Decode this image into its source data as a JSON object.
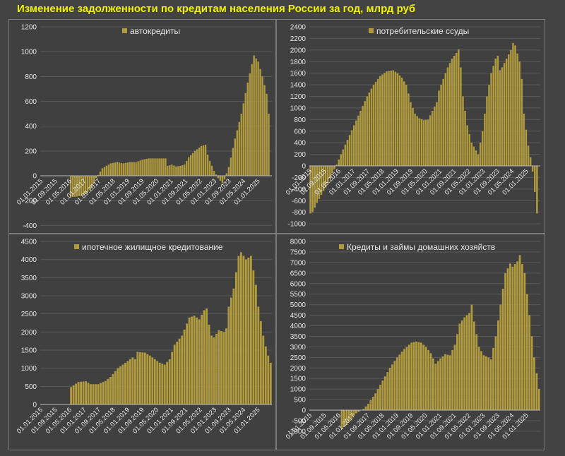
{
  "title": "Изменение задолженности по кредитам населения России за год, млрд руб",
  "colors": {
    "bar": "#b09a3e",
    "title": "#f2f200",
    "text": "#e6e6e6",
    "background": "#404040"
  },
  "chart_data": [
    {
      "type": "bar",
      "legend": "автокредиты",
      "ylim": [
        -400,
        1200
      ],
      "yticks": [
        -400,
        -200,
        0,
        200,
        400,
        600,
        800,
        1000,
        1200
      ],
      "x_tick_labels": [
        "01.01.2015",
        "01.09.2015",
        "01.05.2016",
        "01.01.2017",
        "01.09.2017",
        "01.05.2018",
        "01.01.2019",
        "01.09.2019",
        "01.05.2020",
        "01.01.2021",
        "01.09.2021",
        "01.05.2022",
        "01.01.2023",
        "01.09.2023",
        "01.05.2024",
        "01.01.2025"
      ],
      "anchors": [
        [
          0,
          null
        ],
        [
          13,
          null
        ],
        [
          14,
          -170
        ],
        [
          16,
          -170
        ],
        [
          20,
          -160
        ],
        [
          24,
          -100
        ],
        [
          26,
          -20
        ],
        [
          29,
          60
        ],
        [
          33,
          100
        ],
        [
          36,
          110
        ],
        [
          39,
          100
        ],
        [
          42,
          110
        ],
        [
          45,
          110
        ],
        [
          48,
          130
        ],
        [
          51,
          140
        ],
        [
          54,
          140
        ],
        [
          57,
          140
        ],
        [
          59,
          140
        ],
        [
          60,
          80
        ],
        [
          62,
          90
        ],
        [
          64,
          75
        ],
        [
          66,
          80
        ],
        [
          68,
          90
        ],
        [
          70,
          150
        ],
        [
          73,
          200
        ],
        [
          76,
          240
        ],
        [
          78,
          250
        ],
        [
          79,
          170
        ],
        [
          80,
          120
        ],
        [
          82,
          40
        ],
        [
          84,
          -20
        ],
        [
          85,
          -40
        ],
        [
          86,
          -60
        ],
        [
          87,
          -30
        ],
        [
          89,
          70
        ],
        [
          92,
          300
        ],
        [
          95,
          500
        ],
        [
          98,
          750
        ],
        [
          100,
          900
        ],
        [
          101,
          970
        ],
        [
          103,
          920
        ],
        [
          105,
          800
        ],
        [
          107,
          660
        ],
        [
          108,
          500
        ]
      ]
    },
    {
      "type": "bar",
      "legend": "потребительские ссуды",
      "ylim": [
        -1000,
        2400
      ],
      "yticks": [
        -1000,
        -800,
        -600,
        -400,
        -200,
        0,
        200,
        400,
        600,
        800,
        1000,
        1200,
        1400,
        1600,
        1800,
        2000,
        2200,
        2400
      ],
      "x_tick_labels": [
        "01.01.2015",
        "01.09.2015",
        "01.05.2016",
        "01.01.2017",
        "01.09.2017",
        "01.05.2018",
        "01.01.2019",
        "01.09.2019",
        "01.05.2020",
        "01.01.2021",
        "01.09.2021",
        "01.05.2022",
        "01.01.2023",
        "01.09.2023",
        "01.05.2024",
        "01.01.2025"
      ],
      "anchors": [
        [
          0,
          -820
        ],
        [
          1,
          -800
        ],
        [
          3,
          -640
        ],
        [
          5,
          -500
        ],
        [
          8,
          -300
        ],
        [
          10,
          -130
        ],
        [
          11,
          -60
        ],
        [
          12,
          20
        ],
        [
          14,
          200
        ],
        [
          17,
          450
        ],
        [
          20,
          700
        ],
        [
          23,
          950
        ],
        [
          26,
          1200
        ],
        [
          29,
          1400
        ],
        [
          32,
          1550
        ],
        [
          35,
          1630
        ],
        [
          38,
          1650
        ],
        [
          40,
          1600
        ],
        [
          42,
          1520
        ],
        [
          44,
          1400
        ],
        [
          46,
          1100
        ],
        [
          48,
          900
        ],
        [
          50,
          820
        ],
        [
          52,
          790
        ],
        [
          54,
          800
        ],
        [
          56,
          950
        ],
        [
          58,
          1100
        ],
        [
          59,
          1300
        ],
        [
          61,
          1500
        ],
        [
          63,
          1700
        ],
        [
          65,
          1850
        ],
        [
          67,
          1950
        ],
        [
          68,
          2010
        ],
        [
          69,
          1700
        ],
        [
          70,
          1200
        ],
        [
          72,
          700
        ],
        [
          74,
          400
        ],
        [
          77,
          200
        ],
        [
          79,
          600
        ],
        [
          81,
          1200
        ],
        [
          83,
          1600
        ],
        [
          85,
          1850
        ],
        [
          86,
          1900
        ],
        [
          87,
          1650
        ],
        [
          88,
          1700
        ],
        [
          90,
          1850
        ],
        [
          92,
          2000
        ],
        [
          93,
          2120
        ],
        [
          94,
          2080
        ],
        [
          96,
          1800
        ],
        [
          97,
          1500
        ],
        [
          98,
          900
        ],
        [
          100,
          350
        ],
        [
          101,
          150
        ],
        [
          102,
          -100
        ],
        [
          103,
          -450
        ],
        [
          104,
          -820
        ]
      ]
    },
    {
      "type": "bar",
      "legend": "ипотечное жилищное кредитование",
      "ylim": [
        0,
        4500
      ],
      "yticks": [
        0,
        500,
        1000,
        1500,
        2000,
        2500,
        3000,
        3500,
        4000,
        4500
      ],
      "x_tick_labels": [
        "01.01.2015",
        "01.09.2015",
        "01.05.2016",
        "01.01.2017",
        "01.09.2017",
        "01.05.2018",
        "01.01.2019",
        "01.09.2019",
        "01.05.2020",
        "01.01.2021",
        "01.09.2021",
        "01.05.2022",
        "01.01.2023",
        "01.09.2023",
        "01.05.2024",
        "01.01.2025"
      ],
      "anchors": [
        [
          0,
          null
        ],
        [
          11,
          null
        ],
        [
          12,
          480
        ],
        [
          15,
          620
        ],
        [
          18,
          640
        ],
        [
          20,
          560
        ],
        [
          23,
          560
        ],
        [
          26,
          650
        ],
        [
          28,
          760
        ],
        [
          31,
          1000
        ],
        [
          34,
          1150
        ],
        [
          37,
          1300
        ],
        [
          38,
          1250
        ],
        [
          39,
          1450
        ],
        [
          42,
          1430
        ],
        [
          44,
          1350
        ],
        [
          46,
          1250
        ],
        [
          48,
          1150
        ],
        [
          50,
          1100
        ],
        [
          52,
          1250
        ],
        [
          54,
          1650
        ],
        [
          57,
          1900
        ],
        [
          60,
          2400
        ],
        [
          62,
          2450
        ],
        [
          64,
          2350
        ],
        [
          66,
          2600
        ],
        [
          67,
          2650
        ],
        [
          68,
          2200
        ],
        [
          69,
          1900
        ],
        [
          70,
          1850
        ],
        [
          72,
          2050
        ],
        [
          74,
          2000
        ],
        [
          75,
          2100
        ],
        [
          76,
          2700
        ],
        [
          78,
          3200
        ],
        [
          80,
          4100
        ],
        [
          81,
          4200
        ],
        [
          83,
          4000
        ],
        [
          85,
          4100
        ],
        [
          86,
          3700
        ],
        [
          87,
          3300
        ],
        [
          88,
          2700
        ],
        [
          89,
          2300
        ],
        [
          90,
          1900
        ],
        [
          91,
          1600
        ],
        [
          92,
          1350
        ],
        [
          93,
          1150
        ]
      ]
    },
    {
      "type": "bar",
      "legend": "Кредиты и займы домашних хозяйств",
      "ylim": [
        -1000,
        8000
      ],
      "yticks": [
        -1000,
        -500,
        0,
        500,
        1000,
        1500,
        2000,
        2500,
        3000,
        3500,
        4000,
        4500,
        5000,
        5500,
        6000,
        6500,
        7000,
        7500,
        8000
      ],
      "x_tick_labels": [
        "01.01.2015",
        "01.09.2015",
        "01.05.2016",
        "01.01.2017",
        "01.09.2017",
        "01.05.2018",
        "01.01.2019",
        "01.09.2019",
        "01.05.2020",
        "01.01.2021",
        "01.09.2021",
        "01.05.2022",
        "01.01.2023",
        "01.09.2023",
        "01.05.2024",
        "01.01.2025"
      ],
      "anchors": [
        [
          0,
          null
        ],
        [
          12,
          null
        ],
        [
          13,
          -900
        ],
        [
          15,
          -700
        ],
        [
          17,
          -400
        ],
        [
          19,
          -150
        ],
        [
          22,
          50
        ],
        [
          24,
          300
        ],
        [
          27,
          800
        ],
        [
          30,
          1400
        ],
        [
          33,
          2000
        ],
        [
          36,
          2500
        ],
        [
          39,
          2900
        ],
        [
          42,
          3200
        ],
        [
          44,
          3250
        ],
        [
          46,
          3200
        ],
        [
          48,
          3000
        ],
        [
          50,
          2700
        ],
        [
          52,
          2200
        ],
        [
          54,
          2450
        ],
        [
          56,
          2650
        ],
        [
          58,
          2600
        ],
        [
          60,
          3100
        ],
        [
          62,
          4100
        ],
        [
          64,
          4400
        ],
        [
          66,
          4600
        ],
        [
          67,
          5000
        ],
        [
          68,
          4200
        ],
        [
          70,
          3000
        ],
        [
          72,
          2600
        ],
        [
          74,
          2500
        ],
        [
          75,
          2400
        ],
        [
          77,
          3500
        ],
        [
          79,
          5000
        ],
        [
          81,
          6500
        ],
        [
          83,
          6950
        ],
        [
          84,
          6800
        ],
        [
          86,
          7050
        ],
        [
          87,
          7350
        ],
        [
          89,
          6500
        ],
        [
          91,
          4500
        ],
        [
          93,
          2500
        ],
        [
          95,
          1000
        ]
      ]
    }
  ]
}
